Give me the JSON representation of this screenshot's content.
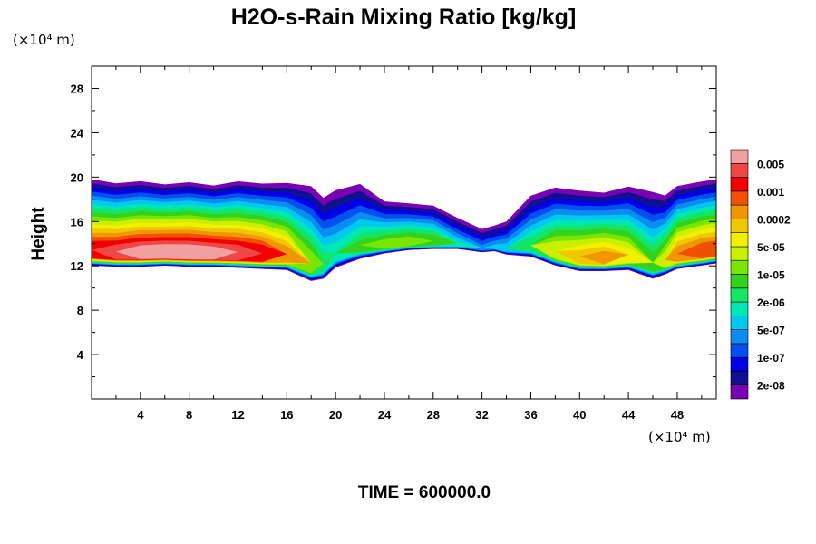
{
  "chart_data": {
    "type": "heatmap",
    "title": "H2O-s-Rain Mixing Ratio [kg/kg]",
    "ylabel": "Height",
    "x_unit": "(×10⁴ m)",
    "y_unit": "(×10⁴ m)",
    "x_ticks": [
      4,
      8,
      12,
      16,
      20,
      24,
      28,
      32,
      36,
      40,
      44,
      48
    ],
    "y_ticks": [
      4,
      8,
      12,
      16,
      20,
      24,
      28
    ],
    "xlim": [
      0,
      51.2
    ],
    "ylim": [
      0,
      30
    ],
    "colorbar": {
      "labels": [
        "0.005",
        "0.001",
        "0.0002",
        "5e-05",
        "1e-05",
        "2e-06",
        "5e-07",
        "1e-07",
        "2e-08"
      ],
      "colors": [
        "#7a00b4",
        "#101090",
        "#0000e6",
        "#0050f0",
        "#0a8cf0",
        "#00c8f0",
        "#00e6b4",
        "#14e664",
        "#32d21e",
        "#78e600",
        "#c8f000",
        "#f0f000",
        "#f0c800",
        "#f09600",
        "#f05000",
        "#f00000",
        "#f04646",
        "#f0a0a0"
      ]
    },
    "layer": {
      "x": [
        0,
        2,
        4,
        6,
        8,
        10,
        12,
        14,
        16,
        18,
        19,
        20,
        22,
        24,
        26,
        28,
        30,
        32,
        33,
        34,
        36,
        38,
        40,
        42,
        44,
        46,
        47,
        48,
        50,
        51.2
      ],
      "top": [
        20,
        19.6,
        19.8,
        19.5,
        19.7,
        19.4,
        19.8,
        19.6,
        19.7,
        19.5,
        18.5,
        19.2,
        19.7,
        18.0,
        17.8,
        17.6,
        16.5,
        15.5,
        15.8,
        16.2,
        18.6,
        19.3,
        19.0,
        18.8,
        19.4,
        19.0,
        18.6,
        19.4,
        19.8,
        20
      ],
      "bottom": [
        12,
        11.9,
        11.9,
        12.0,
        11.9,
        11.9,
        11.8,
        11.7,
        11.6,
        10.6,
        10.8,
        11.8,
        12.6,
        13.1,
        13.4,
        13.5,
        13.5,
        13.2,
        13.3,
        13.0,
        12.8,
        12.0,
        11.5,
        11.5,
        11.6,
        10.8,
        11.2,
        11.7,
        12.0,
        12.2
      ],
      "peak": [
        5,
        5.2,
        5.4,
        5.5,
        5.5,
        5.4,
        5.2,
        5.0,
        4.3,
        3.2,
        2.5,
        2.2,
        2.6,
        3.0,
        3.1,
        2.9,
        2.0,
        1.5,
        1.7,
        1.9,
        2.5,
        3.5,
        3.9,
        4.2,
        3.6,
        2.8,
        3.4,
        4.3,
        4.6,
        4.6
      ]
    },
    "annotation": "TIME = 600000.0",
    "grid": false
  }
}
